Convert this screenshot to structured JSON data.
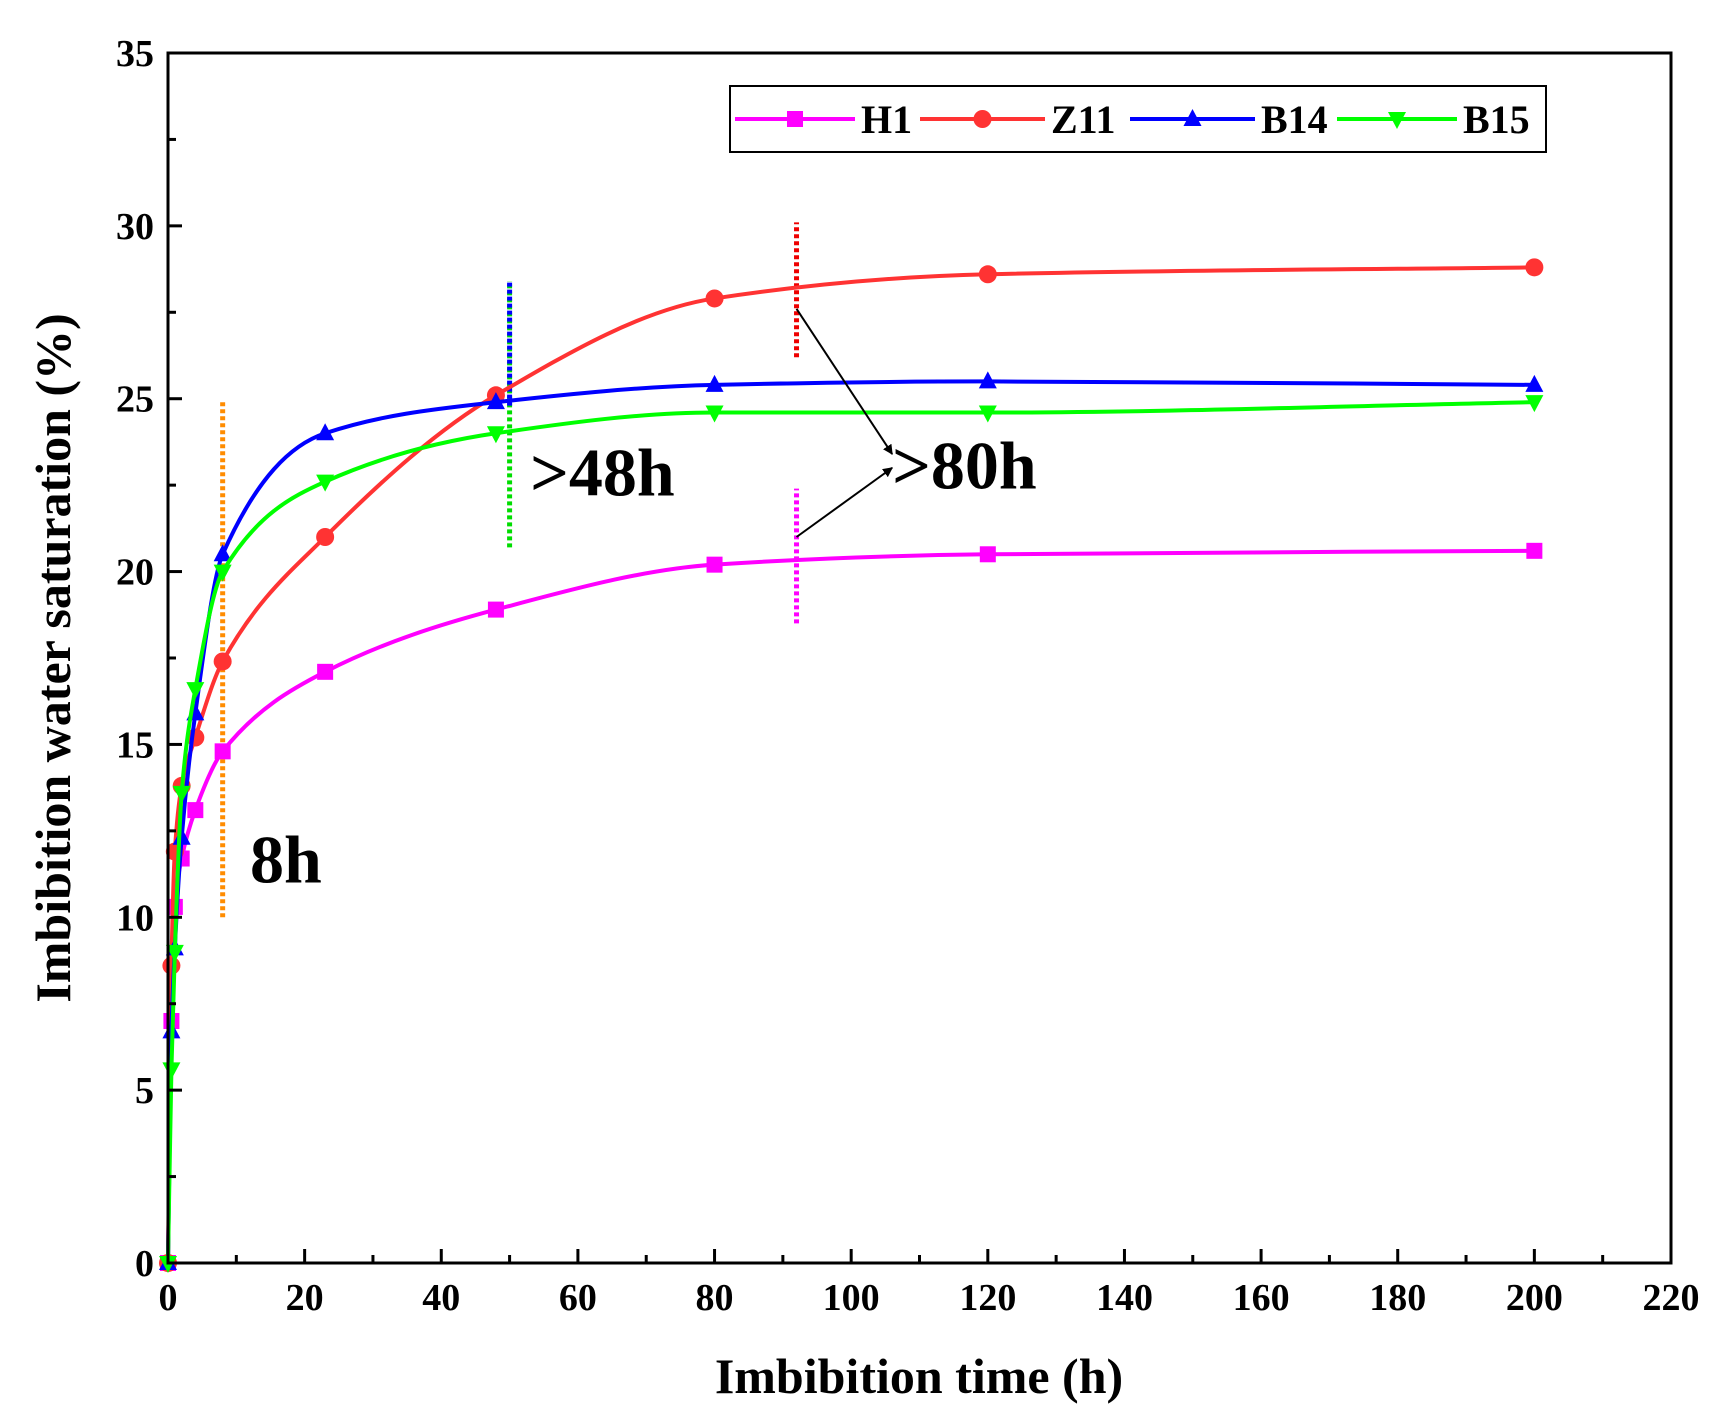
{
  "chart_data": {
    "type": "line",
    "title": "",
    "xlabel": "Imbibition time (h)",
    "ylabel": "Imbibition water saturation (%)",
    "xlim": [
      0,
      220
    ],
    "ylim": [
      0,
      35
    ],
    "xticks": [
      0,
      20,
      40,
      60,
      80,
      100,
      120,
      140,
      160,
      180,
      200,
      220
    ],
    "yticks": [
      0,
      5,
      10,
      15,
      20,
      25,
      30,
      35
    ],
    "legend_position": "top-right",
    "series": [
      {
        "name": "H1",
        "color": "#ff00ff",
        "marker": "square",
        "x": [
          0,
          0.5,
          1,
          2,
          4,
          8,
          23,
          48,
          80,
          120,
          200
        ],
        "y": [
          0,
          7.0,
          10.3,
          11.7,
          13.1,
          14.8,
          17.1,
          18.9,
          20.2,
          20.5,
          20.6
        ]
      },
      {
        "name": "Z11",
        "color": "#ff3333",
        "marker": "circle",
        "x": [
          0,
          0.5,
          1,
          2,
          4,
          8,
          23,
          48,
          80,
          120,
          200
        ],
        "y": [
          0,
          8.6,
          11.9,
          13.8,
          15.2,
          17.4,
          21.0,
          25.1,
          27.9,
          28.6,
          28.8
        ]
      },
      {
        "name": "B14",
        "color": "#0000ff",
        "marker": "triangle-up",
        "x": [
          0,
          0.5,
          1,
          2,
          4,
          8,
          23,
          48,
          80,
          120,
          200
        ],
        "y": [
          0,
          6.7,
          9.1,
          12.3,
          15.9,
          20.5,
          24.0,
          24.9,
          25.4,
          25.5,
          25.4
        ]
      },
      {
        "name": "B15",
        "color": "#00ff00",
        "marker": "triangle-down",
        "x": [
          0,
          0.5,
          1,
          2,
          4,
          8,
          23,
          48,
          80,
          120,
          200
        ],
        "y": [
          0,
          5.6,
          9.0,
          13.6,
          16.6,
          20.0,
          22.6,
          24.0,
          24.6,
          24.6,
          24.9
        ]
      }
    ],
    "reference_lines": [
      {
        "x": 8,
        "y_from": 10.0,
        "y_to": 24.9,
        "color": "#ff8c00"
      },
      {
        "x": 50,
        "y_from": 20.7,
        "y_to": 28.4,
        "color": "#00dd00"
      },
      {
        "x": 50,
        "y_from": 24.8,
        "y_to": 28.4,
        "color": "#0000ff"
      },
      {
        "x": 92,
        "y_from": 18.5,
        "y_to": 22.4,
        "color": "#ff00ff"
      },
      {
        "x": 92,
        "y_from": 26.2,
        "y_to": 30.1,
        "color": "#ee0000"
      }
    ],
    "annotations": [
      {
        "id": "label-8h",
        "text": "8h",
        "x": 12,
        "y": 11.0
      },
      {
        "id": "label-48h",
        "text": ">48h",
        "x": 53,
        "y": 22.2
      },
      {
        "id": "label-80h",
        "text": ">80h",
        "x": 106,
        "y": 22.4
      }
    ],
    "arrows": [
      {
        "from": [
          92,
          27.6
        ],
        "to": [
          106,
          23.4
        ]
      },
      {
        "from": [
          92,
          21.0
        ],
        "to": [
          106,
          23.0
        ]
      }
    ]
  }
}
